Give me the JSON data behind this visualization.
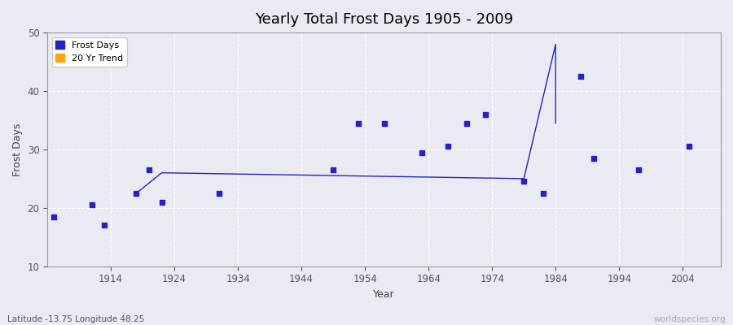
{
  "title": "Yearly Total Frost Days 1905 - 2009",
  "xlabel": "Year",
  "ylabel": "Frost Days",
  "subtitle": "Latitude -13.75 Longitude 48.25",
  "watermark": "worldspecies.org",
  "ylim": [
    10,
    50
  ],
  "xlim": [
    1904,
    2010
  ],
  "xticks": [
    1914,
    1924,
    1934,
    1944,
    1954,
    1964,
    1974,
    1984,
    1994,
    2004
  ],
  "yticks": [
    10,
    20,
    30,
    40,
    50
  ],
  "scatter_color": "#2222cc",
  "trend_color": "#2222cc",
  "background_color": "#eaeaf2",
  "grid_color": "#ffffff",
  "frost_days_x": [
    1905,
    1911,
    1913,
    1918,
    1920,
    1922,
    1931,
    1949,
    1953,
    1957,
    1963,
    1967,
    1970,
    1973,
    1979,
    1982,
    1988,
    1990,
    1997,
    2005
  ],
  "frost_days_y": [
    18.5,
    20.5,
    17.0,
    22.5,
    26.5,
    21.0,
    22.5,
    26.5,
    34.5,
    34.5,
    29.5,
    30.5,
    34.5,
    36.0,
    24.5,
    22.5,
    42.5,
    28.5,
    26.5,
    30.5
  ],
  "trend_x": [
    1918,
    1922,
    1979,
    1979,
    1984,
    1984
  ],
  "trend_y": [
    22.5,
    26.0,
    25.0,
    25.0,
    48.0,
    34.5
  ],
  "legend_frost_label": "Frost Days",
  "legend_trend_label": "20 Yr Trend",
  "marker_size": 22
}
